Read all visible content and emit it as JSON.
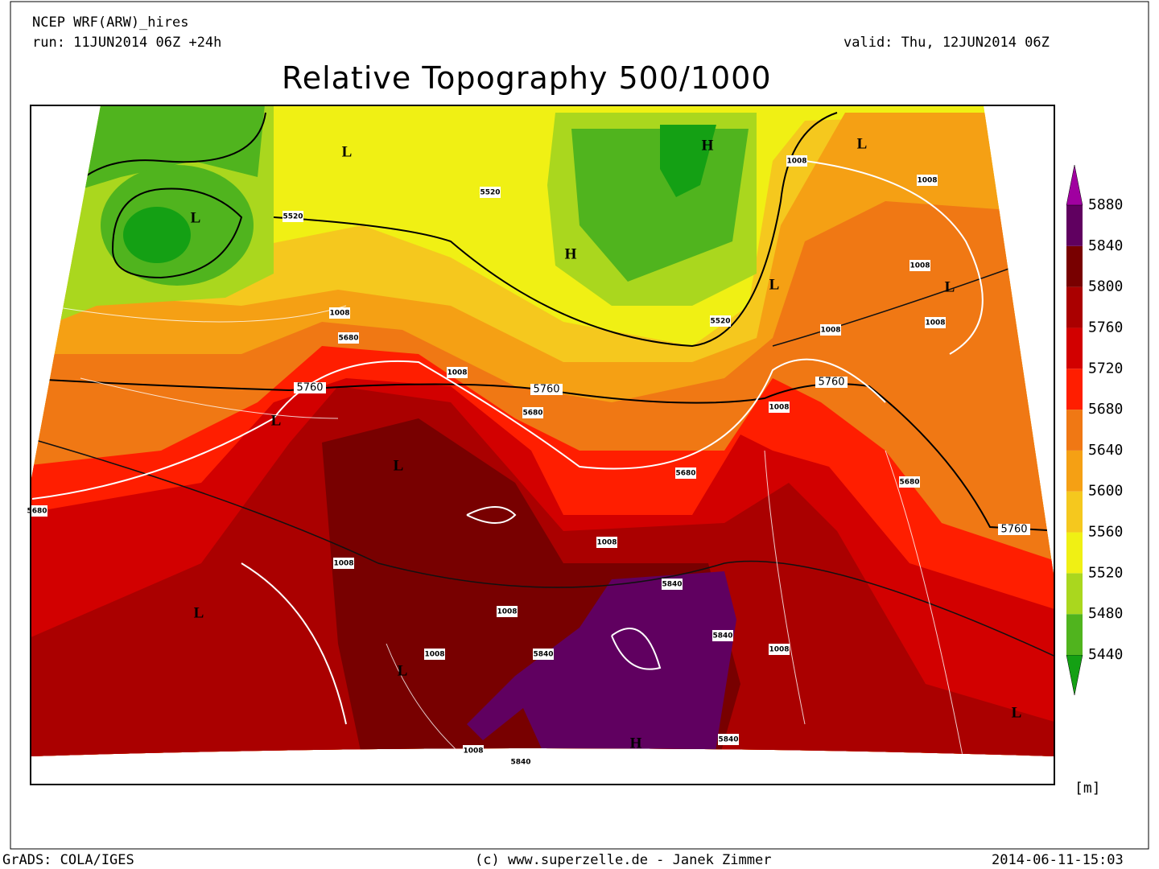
{
  "header": {
    "model": "NCEP WRF(ARW)_hires",
    "run": "run: 11JUN2014 06Z +24h",
    "valid": "valid: Thu, 12JUN2014 06Z",
    "title": "Relative Topography 500/1000"
  },
  "legend": {
    "levels": [
      5440,
      5480,
      5520,
      5560,
      5600,
      5640,
      5680,
      5720,
      5760,
      5800,
      5840,
      5880
    ],
    "unit": "[m]",
    "colors": [
      "#14a014",
      "#50b41e",
      "#aad71e",
      "#f0f014",
      "#f5c81e",
      "#f5a014",
      "#f07814",
      "#ff1e00",
      "#d20000",
      "#aa0000",
      "#780000",
      "#600060",
      "#a000a0"
    ]
  },
  "map_labels": {
    "pressure": [
      "L",
      "L",
      "H",
      "L",
      "H",
      "L",
      "L",
      "L",
      "L",
      "L",
      "L",
      "H",
      "L"
    ],
    "contours": [
      "1008",
      "1008",
      "1008",
      "1008",
      "1008",
      "1008",
      "1008",
      "1008",
      "1008",
      "1008",
      "1008",
      "1008",
      "1008",
      "1008",
      "5760",
      "5760",
      "5760",
      "5760",
      "5520",
      "5520",
      "5520",
      "5680",
      "5680",
      "5680",
      "5680",
      "5680",
      "5840",
      "5840",
      "5840",
      "5840",
      "5840"
    ]
  },
  "footer": {
    "left": "GrADS: COLA/IGES",
    "center": "(c) www.superzelle.de - Janek Zimmer",
    "right": "2014-06-11-15:03"
  }
}
